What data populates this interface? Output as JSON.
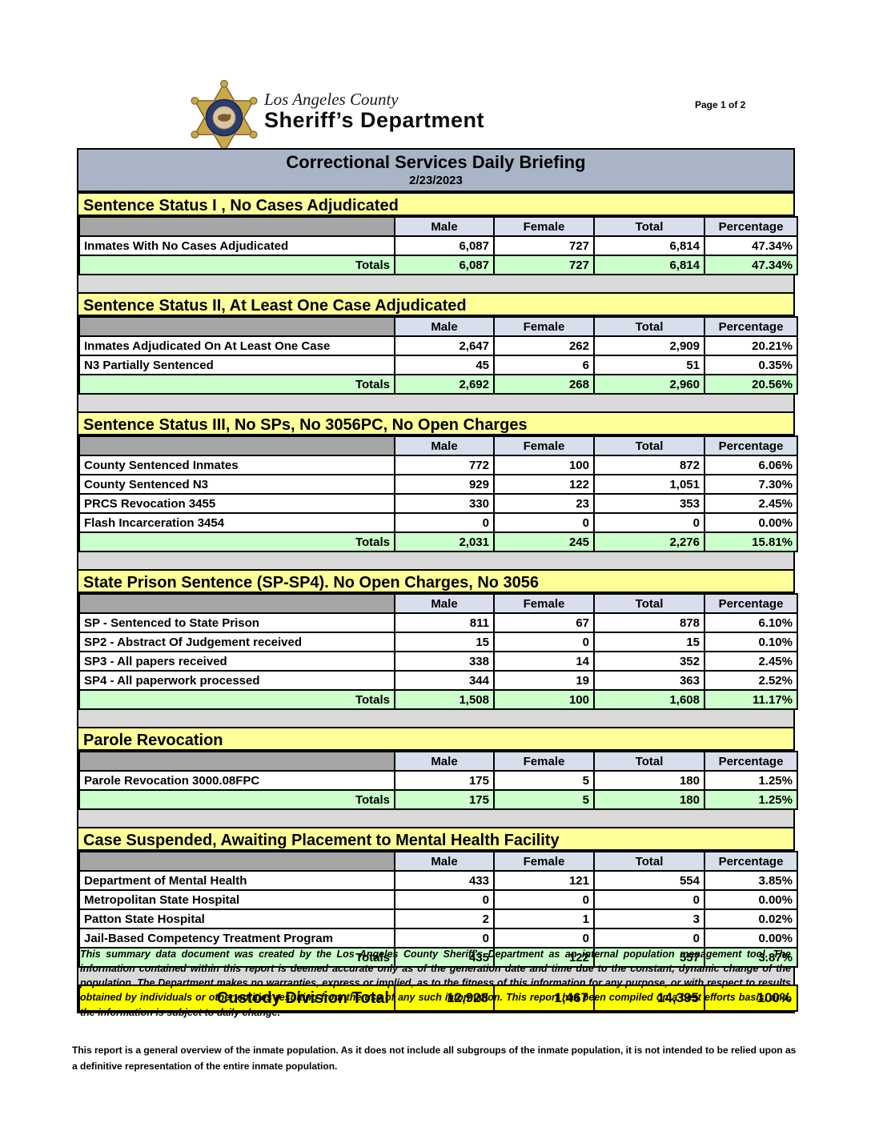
{
  "page": {
    "number_label": "Page 1 of 2"
  },
  "header": {
    "logo_icon": "sheriff-star-badge-icon",
    "agency_line1": "Los Angeles County",
    "agency_line2": "Sheriff’s Department"
  },
  "title_bar": {
    "title": "Correctional Services Daily Briefing",
    "date": "2/23/2023"
  },
  "columns": [
    "Male",
    "Female",
    "Total",
    "Percentage"
  ],
  "totals_label": "Totals",
  "sections": [
    {
      "title": "Sentence Status I , No Cases Adjudicated",
      "rows": [
        {
          "label": "Inmates With No Cases Adjudicated",
          "male": "6,087",
          "female": "727",
          "total": "6,814",
          "percentage": "47.34%"
        }
      ],
      "totals": {
        "male": "6,087",
        "female": "727",
        "total": "6,814",
        "percentage": "47.34%"
      }
    },
    {
      "title": "Sentence Status II, At Least One Case Adjudicated",
      "rows": [
        {
          "label": "Inmates Adjudicated On At Least One Case",
          "male": "2,647",
          "female": "262",
          "total": "2,909",
          "percentage": "20.21%"
        },
        {
          "label": "N3 Partially Sentenced",
          "male": "45",
          "female": "6",
          "total": "51",
          "percentage": "0.35%"
        }
      ],
      "totals": {
        "male": "2,692",
        "female": "268",
        "total": "2,960",
        "percentage": "20.56%"
      }
    },
    {
      "title": "Sentence Status III, No SPs, No 3056PC, No Open Charges",
      "rows": [
        {
          "label": "County Sentenced Inmates",
          "male": "772",
          "female": "100",
          "total": "872",
          "percentage": "6.06%"
        },
        {
          "label": "County Sentenced N3",
          "male": "929",
          "female": "122",
          "total": "1,051",
          "percentage": "7.30%"
        },
        {
          "label": "PRCS Revocation 3455",
          "male": "330",
          "female": "23",
          "total": "353",
          "percentage": "2.45%"
        },
        {
          "label": "Flash Incarceration 3454",
          "male": "0",
          "female": "0",
          "total": "0",
          "percentage": "0.00%"
        }
      ],
      "totals": {
        "male": "2,031",
        "female": "245",
        "total": "2,276",
        "percentage": "15.81%"
      }
    },
    {
      "title": "State Prison Sentence (SP-SP4). No Open Charges, No 3056",
      "rows": [
        {
          "label": "SP - Sentenced to State Prison",
          "male": "811",
          "female": "67",
          "total": "878",
          "percentage": "6.10%"
        },
        {
          "label": "SP2 - Abstract Of Judgement received",
          "male": "15",
          "female": "0",
          "total": "15",
          "percentage": "0.10%"
        },
        {
          "label": "SP3 - All papers received",
          "male": "338",
          "female": "14",
          "total": "352",
          "percentage": "2.45%"
        },
        {
          "label": "SP4 - All paperwork processed",
          "male": "344",
          "female": "19",
          "total": "363",
          "percentage": "2.52%"
        }
      ],
      "totals": {
        "male": "1,508",
        "female": "100",
        "total": "1,608",
        "percentage": "11.17%"
      }
    },
    {
      "title": "Parole Revocation",
      "rows": [
        {
          "label": "Parole Revocation 3000.08FPC",
          "male": "175",
          "female": "5",
          "total": "180",
          "percentage": "1.25%"
        }
      ],
      "totals": {
        "male": "175",
        "female": "5",
        "total": "180",
        "percentage": "1.25%"
      }
    },
    {
      "title": "Case Suspended, Awaiting Placement to Mental Health Facility",
      "rows": [
        {
          "label": "Department of Mental Health",
          "male": "433",
          "female": "121",
          "total": "554",
          "percentage": "3.85%"
        },
        {
          "label": "Metropolitan State Hospital",
          "male": "0",
          "female": "0",
          "total": "0",
          "percentage": "0.00%"
        },
        {
          "label": "Patton State Hospital",
          "male": "2",
          "female": "1",
          "total": "3",
          "percentage": "0.02%"
        },
        {
          "label": "Jail-Based Competency Treatment Program",
          "male": "0",
          "female": "0",
          "total": "0",
          "percentage": "0.00%"
        }
      ],
      "totals": {
        "male": "435",
        "female": "122",
        "total": "557",
        "percentage": "3.87%"
      }
    }
  ],
  "custody_total": {
    "label": "Custody Division Total",
    "male": "12,928",
    "female": "1,467",
    "total": "14,395",
    "percentage": "100%"
  },
  "footnotes": {
    "disclaimer": "This summary data document was created by the Los Angeles County Sheriff's Department as an internal population management tool.  The information contained within this report is deemed accurate only as of the generation date and time due to the constant, dynamic change of the population.  The Department makes no warranties, express or implied, as to the fitness of this information for any purpose, or with respect to results obtained by individuals or other entities resulting from the use of any such information.  This report has been compiled on a best efforts basis, and, the information is subject to daily change.",
    "overview": "This report is a general overview of the inmate population.  As it does not include all subgroups of the inmate population, it is not intended to be relied upon as a definitive representation of the entire inmate population."
  },
  "colors": {
    "title_bar_bg": "#A9B5C6",
    "section_header_bg": "#FFFF99",
    "column_header_bg": "#D9DEED",
    "column_spacer_bg": "#A6A6A6",
    "totals_row_bg": "#CCFFCC",
    "gap_bg": "#D9D9D9",
    "custody_total_bg": "#FFFF00",
    "badge_gold": "#C9A84C",
    "badge_navy": "#2B3C74"
  }
}
